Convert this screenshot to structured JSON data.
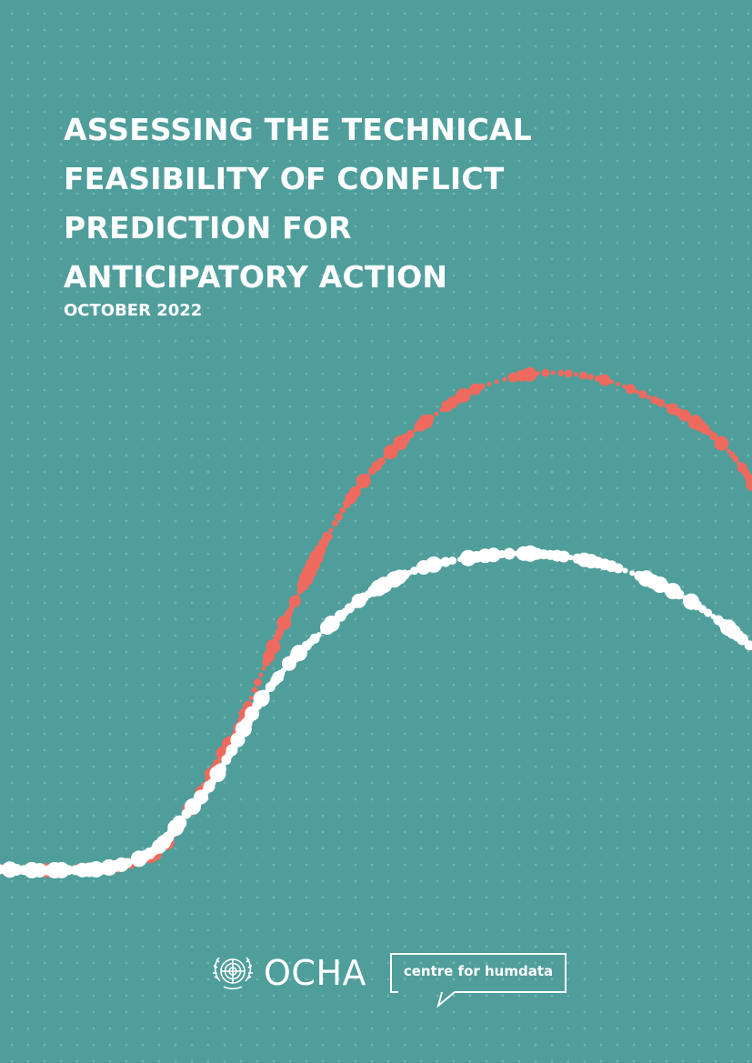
{
  "report": {
    "title_lines": [
      "ASSESSING THE TECHNICAL",
      "FEASIBILITY OF CONFLICT",
      "PREDICTION FOR",
      "ANTICIPATORY ACTION"
    ],
    "date": "OCTOBER 2022"
  },
  "logos": {
    "ocha": "OCHA",
    "ocha_emblem": "un-emblem-icon",
    "humdata": "centre for humdata"
  },
  "colors": {
    "background": "#4f9e9b",
    "accent_red": "#ef6a5e",
    "white": "#ffffff"
  }
}
